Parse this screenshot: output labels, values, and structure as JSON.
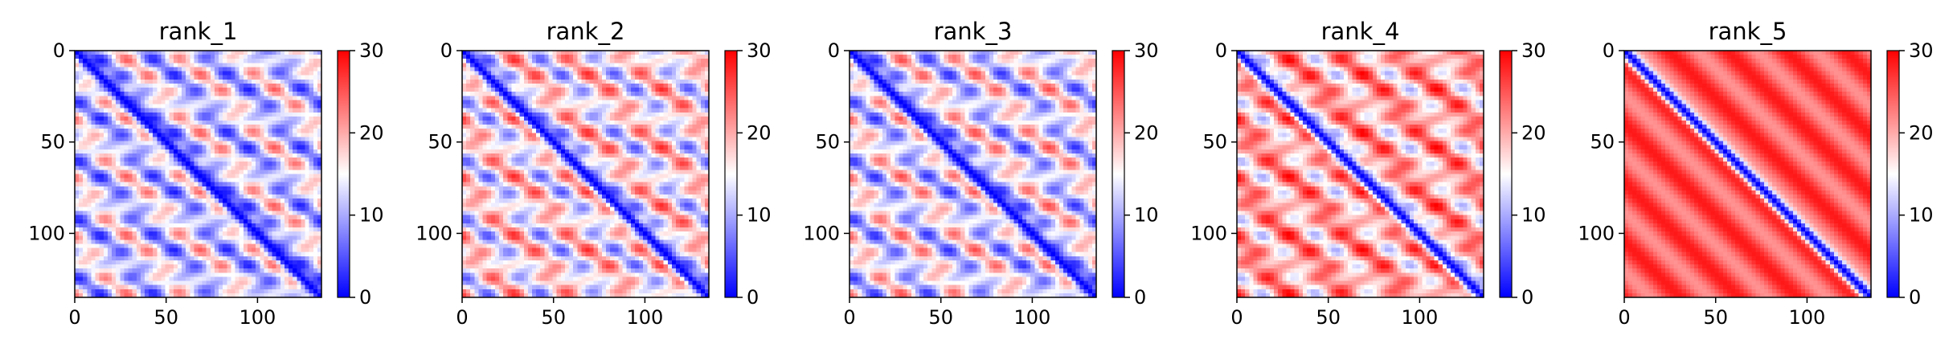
{
  "chart_data": [
    {
      "type": "heatmap",
      "title": "rank_1",
      "x_range": [
        0,
        135
      ],
      "y_range": [
        0,
        135
      ],
      "y_inverted": true,
      "x_ticks": [
        "0",
        "50",
        "100"
      ],
      "y_ticks": [
        "0",
        "50",
        "100"
      ],
      "colorbar": {
        "range": [
          0,
          30
        ],
        "ticks": [
          "0",
          "10",
          "20",
          "30"
        ],
        "colormap": "bwr"
      },
      "pattern": {
        "diagonal_value": 0,
        "background_value": 13,
        "off_diagonal_band_amplitude": 9,
        "horizontal_band_period": 16
      }
    },
    {
      "type": "heatmap",
      "title": "rank_2",
      "x_range": [
        0,
        135
      ],
      "y_range": [
        0,
        135
      ],
      "y_inverted": true,
      "x_ticks": [
        "0",
        "50",
        "100"
      ],
      "y_ticks": [
        "0",
        "50",
        "100"
      ],
      "colorbar": {
        "range": [
          0,
          30
        ],
        "ticks": [
          "0",
          "10",
          "20",
          "30"
        ],
        "colormap": "bwr"
      },
      "pattern": {
        "diagonal_value": 0,
        "background_value": 16,
        "off_diagonal_band_amplitude": 9,
        "horizontal_band_period": 16
      }
    },
    {
      "type": "heatmap",
      "title": "rank_3",
      "x_range": [
        0,
        135
      ],
      "y_range": [
        0,
        135
      ],
      "y_inverted": true,
      "x_ticks": [
        "0",
        "50",
        "100"
      ],
      "y_ticks": [
        "0",
        "50",
        "100"
      ],
      "colorbar": {
        "range": [
          0,
          30
        ],
        "ticks": [
          "0",
          "10",
          "20",
          "30"
        ],
        "colormap": "bwr"
      },
      "pattern": {
        "diagonal_value": 0,
        "background_value": 14,
        "off_diagonal_band_amplitude": 9,
        "horizontal_band_period": 16
      }
    },
    {
      "type": "heatmap",
      "title": "rank_4",
      "x_range": [
        0,
        135
      ],
      "y_range": [
        0,
        135
      ],
      "y_inverted": true,
      "x_ticks": [
        "0",
        "50",
        "100"
      ],
      "y_ticks": [
        "0",
        "50",
        "100"
      ],
      "colorbar": {
        "range": [
          0,
          30
        ],
        "ticks": [
          "0",
          "10",
          "20",
          "30"
        ],
        "colormap": "bwr"
      },
      "pattern": {
        "diagonal_value": 0,
        "background_value": 20,
        "off_diagonal_band_amplitude": 8,
        "horizontal_band_period": 16
      }
    },
    {
      "type": "heatmap",
      "title": "rank_5",
      "x_range": [
        0,
        135
      ],
      "y_range": [
        0,
        135
      ],
      "y_inverted": true,
      "x_ticks": [
        "0",
        "50",
        "100"
      ],
      "y_ticks": [
        "0",
        "50",
        "100"
      ],
      "colorbar": {
        "range": [
          0,
          30
        ],
        "ticks": [
          "0",
          "10",
          "20",
          "30"
        ],
        "colormap": "bwr"
      },
      "pattern": {
        "diagonal_value": 0,
        "background_value": 25,
        "off_diagonal_band_amplitude": 6,
        "horizontal_band_period": 0
      }
    }
  ]
}
